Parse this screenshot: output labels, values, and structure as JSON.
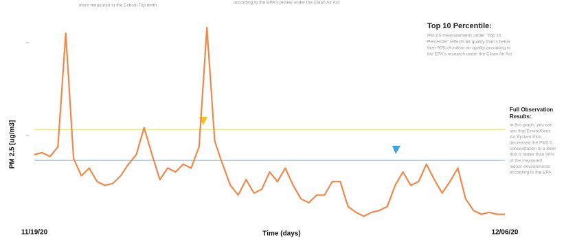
{
  "chart_data": {
    "type": "line",
    "y_label": "PM 2.5 [ug/m3]",
    "x_label": "Time (days)",
    "top_notes": [
      "more measured in the School Top tenth",
      "according to the EPA's review under the Clean Air Act"
    ],
    "top_box": {
      "title": "Top 10 Percentile:",
      "lines": [
        "PM 2.5 measurements under \"Top 10",
        "Percentile\" reflects air quality that is better",
        "than 90% of indoor air quality according to",
        "the EPA's research under the Clean Air Act"
      ]
    },
    "results_box": {
      "title": [
        "Full Observation",
        "Results:"
      ],
      "lines": [
        "In this graph, you can",
        "see that EnviroKlenz",
        "Air System Plus",
        "decreased the PM2.5",
        "concentration to a level",
        "that is better than 90%",
        "of the measured",
        "indoor environments",
        "according to the EPA"
      ]
    },
    "categories": [
      "11/19/20",
      null,
      null,
      null,
      null,
      null,
      null,
      null,
      null,
      null,
      null,
      null,
      null,
      null,
      null,
      null,
      null,
      null,
      null,
      null,
      null,
      null,
      null,
      null,
      null,
      null,
      null,
      null,
      null,
      null,
      null,
      null,
      null,
      null,
      null,
      null,
      null,
      null,
      null,
      null,
      null,
      null,
      null,
      null,
      null,
      null,
      null,
      null,
      null,
      null,
      null,
      null,
      null,
      null,
      null,
      null,
      null,
      null,
      null,
      null,
      "12/06/20"
    ],
    "series": [
      {
        "color": "#f0884a",
        "values": [
          34,
          35,
          33,
          38,
          97,
          32,
          23,
          27,
          20,
          18,
          19,
          23,
          29,
          34,
          48,
          34,
          21,
          27,
          25,
          29,
          27,
          38,
          100,
          41,
          29,
          18,
          13,
          21,
          14,
          16,
          25,
          20,
          27,
          18,
          11,
          9,
          13,
          13,
          20,
          20,
          7,
          4,
          2,
          4,
          5,
          7,
          18,
          25,
          18,
          20,
          29,
          21,
          14,
          20,
          27,
          11,
          5,
          3,
          4,
          3,
          3
        ]
      }
    ],
    "reference_lines": [
      {
        "value": 47,
        "color": "#ecec8c"
      },
      {
        "value": 31,
        "color": "#a9d4e6"
      }
    ],
    "ylim": [
      0,
      100
    ]
  }
}
